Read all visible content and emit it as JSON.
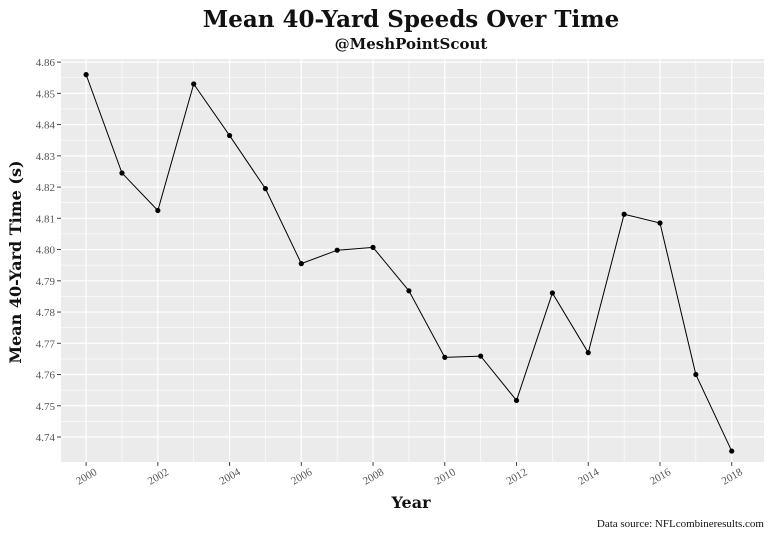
{
  "chart_data": {
    "type": "line",
    "title": "Mean 40-Yard Speeds Over Time",
    "subtitle": "@MeshPointScout",
    "xlabel": "Year",
    "ylabel": "Mean 40-Yard Time (s)",
    "caption": "Data source: NFLcombineresults.com",
    "x": [
      2000,
      2001,
      2002,
      2003,
      2004,
      2005,
      2006,
      2007,
      2008,
      2009,
      2010,
      2011,
      2012,
      2013,
      2014,
      2015,
      2016,
      2017,
      2018
    ],
    "series": [
      {
        "values": [
          4.856,
          4.8245,
          4.8125,
          4.853,
          4.8365,
          4.8195,
          4.7955,
          4.7998,
          4.8007,
          4.7868,
          4.7655,
          4.7659,
          4.7517,
          4.7861,
          4.767,
          4.8113,
          4.8085,
          4.76,
          4.7355
        ]
      }
    ],
    "xlim": [
      1999.3,
      2018.9
    ],
    "ylim": [
      4.732,
      4.861
    ],
    "x_ticks": [
      "2000",
      "2002",
      "2004",
      "2006",
      "2008",
      "2010",
      "2012",
      "2014",
      "2016",
      "2018"
    ],
    "y_ticks": [
      "4.74",
      "4.75",
      "4.76",
      "4.77",
      "4.78",
      "4.79",
      "4.80",
      "4.81",
      "4.82",
      "4.83",
      "4.84",
      "4.85",
      "4.86"
    ],
    "grid": true,
    "colors": {
      "panel": "#ebebeb",
      "grid": "#ffffff",
      "line": "#000000",
      "point": "#000000"
    }
  }
}
